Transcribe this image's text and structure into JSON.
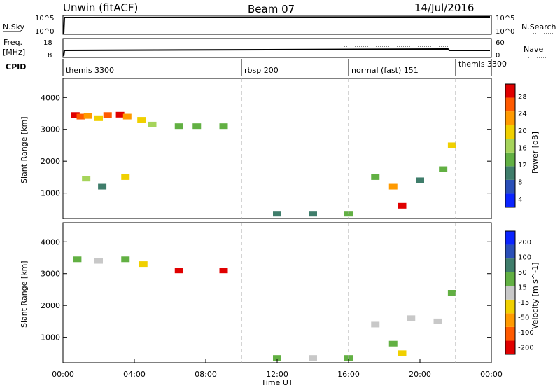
{
  "header": {
    "station": "Unwin (fitACF)",
    "beam": "Beam 07",
    "date": "14/Jul/2016"
  },
  "top_panels": {
    "nsky_label": "N.Sky",
    "nsky_ticks": [
      "10^5",
      "10^0"
    ],
    "nsearch_label": "N.Search",
    "freq_label": "Freq.",
    "freq_unit": "[MHz]",
    "freq_ticks": [
      "18",
      "8"
    ],
    "nave_label": "Nave",
    "nave_ticks": [
      "60",
      "0"
    ],
    "cpid_label": "CPID"
  },
  "cpid_segments": [
    {
      "label": "themis 3300",
      "start_hour": 0
    },
    {
      "label": "rbsp 200",
      "start_hour": 10
    },
    {
      "label": "normal (fast) 151",
      "start_hour": 16
    },
    {
      "label": "themis 3300",
      "start_hour": 22
    }
  ],
  "chart_data": [
    {
      "type": "heatmap",
      "title": "",
      "xlabel": "Time UT",
      "ylabel": "Slant Range [km]",
      "xlim": [
        0,
        24
      ],
      "ylim": [
        200,
        4600
      ],
      "y_ticks": [
        "4000",
        "3000",
        "2000",
        "1000"
      ],
      "colorbar": {
        "label": "Power [dB]",
        "ticks": [
          "28",
          "24",
          "20",
          "16",
          "12",
          "8",
          "4"
        ],
        "range": [
          0,
          30
        ],
        "colors": [
          "#0b24ff",
          "#2a4fb8",
          "#3f7d6b",
          "#62b043",
          "#a6d45b",
          "#f0d000",
          "#ff9a00",
          "#ff5a00",
          "#e00000"
        ]
      },
      "cells": [
        {
          "t": 0.7,
          "r": 3450,
          "v": 28
        },
        {
          "t": 1.0,
          "r": 3400,
          "v": 26
        },
        {
          "t": 1.4,
          "r": 3420,
          "v": 22
        },
        {
          "t": 2.0,
          "r": 3350,
          "v": 18
        },
        {
          "t": 2.5,
          "r": 3450,
          "v": 24
        },
        {
          "t": 3.2,
          "r": 3460,
          "v": 27
        },
        {
          "t": 3.6,
          "r": 3400,
          "v": 21
        },
        {
          "t": 4.4,
          "r": 3300,
          "v": 18
        },
        {
          "t": 5.0,
          "r": 3150,
          "v": 16
        },
        {
          "t": 6.5,
          "r": 3100,
          "v": 12
        },
        {
          "t": 7.5,
          "r": 3100,
          "v": 12
        },
        {
          "t": 9.0,
          "r": 3100,
          "v": 12
        },
        {
          "t": 1.3,
          "r": 1450,
          "v": 16
        },
        {
          "t": 3.5,
          "r": 1500,
          "v": 18
        },
        {
          "t": 2.2,
          "r": 1200,
          "v": 8
        },
        {
          "t": 17.5,
          "r": 1500,
          "v": 12
        },
        {
          "t": 18.5,
          "r": 1200,
          "v": 20
        },
        {
          "t": 19.0,
          "r": 600,
          "v": 28
        },
        {
          "t": 20.0,
          "r": 1400,
          "v": 8
        },
        {
          "t": 21.3,
          "r": 1750,
          "v": 12
        },
        {
          "t": 21.8,
          "r": 2500,
          "v": 18
        },
        {
          "t": 12.0,
          "r": 350,
          "v": 8
        },
        {
          "t": 14.0,
          "r": 350,
          "v": 8
        },
        {
          "t": 16.0,
          "r": 350,
          "v": 10
        }
      ]
    },
    {
      "type": "heatmap",
      "title": "",
      "xlabel": "Time UT",
      "ylabel": "Slant Range [km]",
      "xlim": [
        0,
        24
      ],
      "ylim": [
        200,
        4600
      ],
      "y_ticks": [
        "4000",
        "3000",
        "2000",
        "1000"
      ],
      "colorbar": {
        "label": "Velocity [m s^-1]",
        "ticks": [
          "200",
          "100",
          "50",
          "15",
          "-15",
          "-50",
          "-100",
          "-200"
        ],
        "range": [
          -250,
          250
        ],
        "colors": [
          "#e00000",
          "#ff5a00",
          "#ff9a00",
          "#f0d000",
          "#c8c8c8",
          "#62b043",
          "#3f7d6b",
          "#2a4fb8",
          "#0b24ff"
        ]
      },
      "cells": [
        {
          "t": 0.8,
          "r": 3450,
          "v": 60
        },
        {
          "t": 2.0,
          "r": 3400,
          "v": 20
        },
        {
          "t": 3.5,
          "r": 3450,
          "v": 80
        },
        {
          "t": 4.5,
          "r": 3300,
          "v": -30
        },
        {
          "t": 6.5,
          "r": 3100,
          "v": -220
        },
        {
          "t": 9.0,
          "r": 3100,
          "v": -220
        },
        {
          "t": 17.5,
          "r": 1400,
          "v": 0
        },
        {
          "t": 19.5,
          "r": 1600,
          "v": 0
        },
        {
          "t": 21.0,
          "r": 1500,
          "v": 0
        },
        {
          "t": 18.5,
          "r": 800,
          "v": 70
        },
        {
          "t": 19.0,
          "r": 500,
          "v": -80
        },
        {
          "t": 21.8,
          "r": 2400,
          "v": 60
        },
        {
          "t": 12.0,
          "r": 350,
          "v": 40
        },
        {
          "t": 14.0,
          "r": 350,
          "v": -20
        },
        {
          "t": 16.0,
          "r": 350,
          "v": 30
        }
      ]
    }
  ],
  "x_ticks": [
    "00:00",
    "04:00",
    "08:00",
    "12:00",
    "16:00",
    "20:00",
    "00:00"
  ],
  "x_title": "Time UT"
}
